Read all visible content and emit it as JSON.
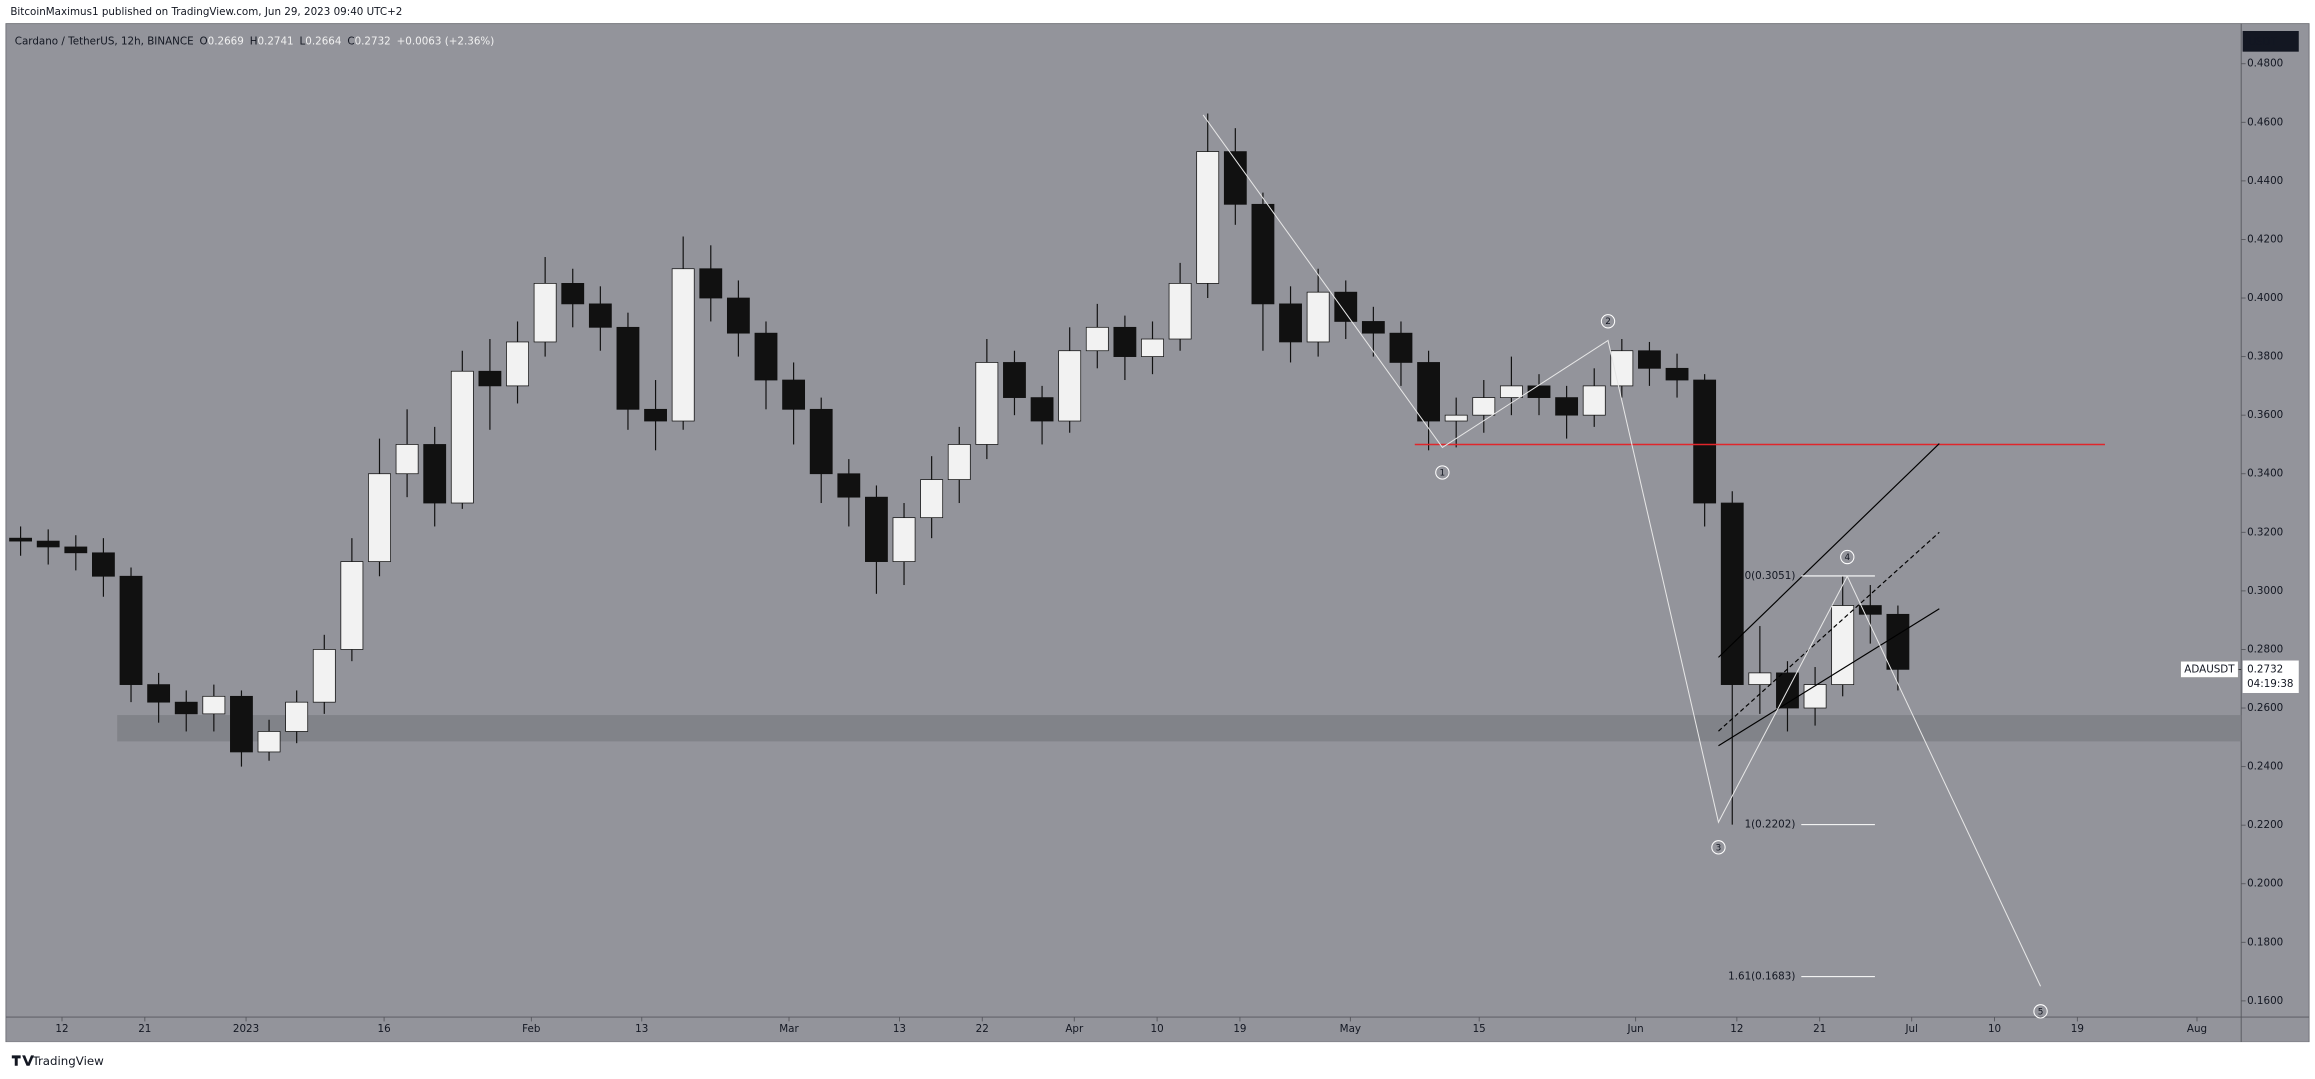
{
  "header": "BitcoinMaximus1 published on TradingView.com, Jun 29, 2023 09:40 UTC+2",
  "footer": "TradingView",
  "chart_data": {
    "type": "candlestick",
    "title": "Cardano / TetherUS, 12h, BINANCE",
    "legend": [
      {
        "key": "O",
        "value": 0.2669
      },
      {
        "key": "H",
        "value": 0.2741
      },
      {
        "key": "L",
        "value": 0.2664
      },
      {
        "key": "C",
        "value": 0.2732
      }
    ],
    "change": "+0.0063 (+2.36%)",
    "axis_unit": "USDT",
    "x": [
      "2022-12-06",
      "2022-12-09",
      "2022-12-12",
      "2022-12-15",
      "2022-12-18",
      "2022-12-21",
      "2022-12-24",
      "2022-12-27",
      "2022-12-30",
      "2023-01-02",
      "2023-01-05",
      "2023-01-08",
      "2023-01-11",
      "2023-01-14",
      "2023-01-17",
      "2023-01-20",
      "2023-01-23",
      "2023-01-26",
      "2023-01-29",
      "2023-02-01",
      "2023-02-04",
      "2023-02-07",
      "2023-02-10",
      "2023-02-13",
      "2023-02-16",
      "2023-02-19",
      "2023-02-22",
      "2023-02-25",
      "2023-02-28",
      "2023-03-03",
      "2023-03-06",
      "2023-03-09",
      "2023-03-12",
      "2023-03-15",
      "2023-03-18",
      "2023-03-21",
      "2023-03-24",
      "2023-03-27",
      "2023-03-30",
      "2023-04-02",
      "2023-04-05",
      "2023-04-08",
      "2023-04-11",
      "2023-04-14",
      "2023-04-17",
      "2023-04-20",
      "2023-04-23",
      "2023-04-26",
      "2023-04-29",
      "2023-05-02",
      "2023-05-05",
      "2023-05-08",
      "2023-05-11",
      "2023-05-14",
      "2023-05-17",
      "2023-05-20",
      "2023-05-23",
      "2023-05-26",
      "2023-05-29",
      "2023-06-01",
      "2023-06-04",
      "2023-06-07",
      "2023-06-10",
      "2023-06-13",
      "2023-06-16",
      "2023-06-19",
      "2023-06-22",
      "2023-06-25",
      "2023-06-28"
    ],
    "candles": [
      [
        0.318,
        0.322,
        0.312,
        0.317
      ],
      [
        0.317,
        0.321,
        0.309,
        0.315
      ],
      [
        0.315,
        0.319,
        0.307,
        0.313
      ],
      [
        0.313,
        0.318,
        0.298,
        0.305
      ],
      [
        0.305,
        0.308,
        0.262,
        0.268
      ],
      [
        0.268,
        0.272,
        0.255,
        0.262
      ],
      [
        0.262,
        0.266,
        0.252,
        0.258
      ],
      [
        0.258,
        0.268,
        0.252,
        0.264
      ],
      [
        0.264,
        0.266,
        0.24,
        0.245
      ],
      [
        0.245,
        0.256,
        0.242,
        0.252
      ],
      [
        0.252,
        0.266,
        0.248,
        0.262
      ],
      [
        0.262,
        0.285,
        0.258,
        0.28
      ],
      [
        0.28,
        0.318,
        0.276,
        0.31
      ],
      [
        0.31,
        0.352,
        0.305,
        0.34
      ],
      [
        0.34,
        0.362,
        0.332,
        0.35
      ],
      [
        0.35,
        0.356,
        0.322,
        0.33
      ],
      [
        0.33,
        0.382,
        0.328,
        0.375
      ],
      [
        0.375,
        0.386,
        0.355,
        0.37
      ],
      [
        0.37,
        0.392,
        0.364,
        0.385
      ],
      [
        0.385,
        0.414,
        0.38,
        0.405
      ],
      [
        0.405,
        0.41,
        0.39,
        0.398
      ],
      [
        0.398,
        0.404,
        0.382,
        0.39
      ],
      [
        0.39,
        0.395,
        0.355,
        0.362
      ],
      [
        0.362,
        0.372,
        0.348,
        0.358
      ],
      [
        0.358,
        0.421,
        0.355,
        0.41
      ],
      [
        0.41,
        0.418,
        0.392,
        0.4
      ],
      [
        0.4,
        0.406,
        0.38,
        0.388
      ],
      [
        0.388,
        0.392,
        0.362,
        0.372
      ],
      [
        0.372,
        0.378,
        0.35,
        0.362
      ],
      [
        0.362,
        0.366,
        0.33,
        0.34
      ],
      [
        0.34,
        0.345,
        0.322,
        0.332
      ],
      [
        0.332,
        0.336,
        0.299,
        0.31
      ],
      [
        0.31,
        0.33,
        0.302,
        0.325
      ],
      [
        0.325,
        0.346,
        0.318,
        0.338
      ],
      [
        0.338,
        0.356,
        0.33,
        0.35
      ],
      [
        0.35,
        0.386,
        0.345,
        0.378
      ],
      [
        0.378,
        0.382,
        0.36,
        0.366
      ],
      [
        0.366,
        0.37,
        0.35,
        0.358
      ],
      [
        0.358,
        0.39,
        0.354,
        0.382
      ],
      [
        0.382,
        0.398,
        0.376,
        0.39
      ],
      [
        0.39,
        0.394,
        0.372,
        0.38
      ],
      [
        0.38,
        0.392,
        0.374,
        0.386
      ],
      [
        0.386,
        0.412,
        0.382,
        0.405
      ],
      [
        0.405,
        0.463,
        0.4,
        0.45
      ],
      [
        0.45,
        0.458,
        0.425,
        0.432
      ],
      [
        0.432,
        0.436,
        0.382,
        0.398
      ],
      [
        0.398,
        0.404,
        0.378,
        0.385
      ],
      [
        0.385,
        0.41,
        0.38,
        0.402
      ],
      [
        0.402,
        0.406,
        0.386,
        0.392
      ],
      [
        0.392,
        0.397,
        0.38,
        0.388
      ],
      [
        0.388,
        0.392,
        0.37,
        0.378
      ],
      [
        0.378,
        0.382,
        0.348,
        0.358
      ],
      [
        0.358,
        0.366,
        0.349,
        0.36
      ],
      [
        0.36,
        0.372,
        0.354,
        0.366
      ],
      [
        0.366,
        0.38,
        0.36,
        0.37
      ],
      [
        0.37,
        0.374,
        0.36,
        0.366
      ],
      [
        0.366,
        0.37,
        0.352,
        0.36
      ],
      [
        0.36,
        0.376,
        0.356,
        0.37
      ],
      [
        0.37,
        0.386,
        0.366,
        0.382
      ],
      [
        0.382,
        0.385,
        0.37,
        0.376
      ],
      [
        0.376,
        0.381,
        0.366,
        0.372
      ],
      [
        0.372,
        0.374,
        0.322,
        0.33
      ],
      [
        0.33,
        0.334,
        0.2202,
        0.268
      ],
      [
        0.268,
        0.288,
        0.258,
        0.272
      ],
      [
        0.272,
        0.276,
        0.252,
        0.26
      ],
      [
        0.26,
        0.274,
        0.254,
        0.268
      ],
      [
        0.268,
        0.3051,
        0.264,
        0.295
      ],
      [
        0.295,
        0.302,
        0.282,
        0.292
      ],
      [
        0.292,
        0.295,
        0.266,
        0.2732
      ]
    ],
    "up_color": "#f2f2f2",
    "down_color": "#111111",
    "xlim": [
      "2022-12-06",
      "2023-08-05"
    ],
    "ylim": [
      0.155,
      0.4937
    ],
    "yticks": [
      {
        "value": 0.16,
        "label": "0.1600"
      },
      {
        "value": 0.18,
        "label": "0.1800"
      },
      {
        "value": 0.2,
        "label": "0.2000"
      },
      {
        "value": 0.22,
        "label": "0.2200"
      },
      {
        "value": 0.24,
        "label": "0.2400"
      },
      {
        "value": 0.26,
        "label": "0.2600"
      },
      {
        "value": 0.28,
        "label": "0.2800"
      },
      {
        "value": 0.3,
        "label": "0.3000"
      },
      {
        "value": 0.32,
        "label": "0.3200"
      },
      {
        "value": 0.34,
        "label": "0.3400"
      },
      {
        "value": 0.36,
        "label": "0.3600"
      },
      {
        "value": 0.38,
        "label": "0.3800"
      },
      {
        "value": 0.4,
        "label": "0.4000"
      },
      {
        "value": 0.42,
        "label": "0.4200"
      },
      {
        "value": 0.44,
        "label": "0.4400"
      },
      {
        "value": 0.46,
        "label": "0.4600"
      },
      {
        "value": 0.48,
        "label": "0.4800"
      }
    ],
    "xticks": [
      {
        "value": "2022-12-12",
        "label": "12"
      },
      {
        "value": "2022-12-21",
        "label": "21"
      },
      {
        "value": "2023-01-01",
        "label": "2023"
      },
      {
        "value": "2023-01-16",
        "label": "16"
      },
      {
        "value": "2023-02-01",
        "label": "Feb"
      },
      {
        "value": "2023-02-13",
        "label": "13"
      },
      {
        "value": "2023-03-01",
        "label": "Mar"
      },
      {
        "value": "2023-03-13",
        "label": "13"
      },
      {
        "value": "2023-03-22",
        "label": "22"
      },
      {
        "value": "2023-04-01",
        "label": "Apr"
      },
      {
        "value": "2023-04-10",
        "label": "10"
      },
      {
        "value": "2023-04-19",
        "label": "19"
      },
      {
        "value": "2023-05-01",
        "label": "May"
      },
      {
        "value": "2023-05-15",
        "label": "15"
      },
      {
        "value": "2023-06-01",
        "label": "Jun"
      },
      {
        "value": "2023-06-12",
        "label": "12"
      },
      {
        "value": "2023-06-21",
        "label": "21"
      },
      {
        "value": "2023-07-01",
        "label": "Jul"
      },
      {
        "value": "2023-07-10",
        "label": "10"
      },
      {
        "value": "2023-07-19",
        "label": "19"
      },
      {
        "value": "2023-08-01",
        "label": "Aug"
      }
    ],
    "grid": false,
    "last_price": {
      "symbol": "ADAUSDT",
      "value": 0.2732,
      "countdown": "04:19:38"
    },
    "support_zone": {
      "from": "2022-12-18",
      "range": [
        0.2486,
        0.2576
      ],
      "color": "#7d7e84"
    },
    "resistance": {
      "x": [
        "2023-05-08",
        "2023-07-22"
      ],
      "value": 0.35,
      "color": "#e0262b"
    },
    "channel": {
      "x": [
        "2023-06-10",
        "2023-07-04"
      ],
      "upper": [
        0.2773,
        0.3503
      ],
      "middle": [
        0.2521,
        0.32
      ],
      "lower": [
        0.2471,
        0.2939
      ]
    },
    "fib_x": [
      "2023-06-19",
      "2023-06-27"
    ],
    "fib_levels": [
      {
        "value": 0.3051,
        "label": "0(0.3051)"
      },
      {
        "value": 0.2202,
        "label": "1(0.2202)"
      },
      {
        "value": 0.1683,
        "label": "1.61(0.1683)"
      }
    ],
    "waves": {
      "x": [
        "2023-04-15",
        "2023-05-11",
        "2023-05-29",
        "2023-06-10",
        "2023-06-24",
        "2023-07-15"
      ],
      "values": [
        0.4625,
        0.349,
        0.3855,
        0.221,
        0.305,
        0.165
      ],
      "labels": [
        null,
        "1",
        "2",
        "3",
        "4",
        "5"
      ]
    }
  }
}
